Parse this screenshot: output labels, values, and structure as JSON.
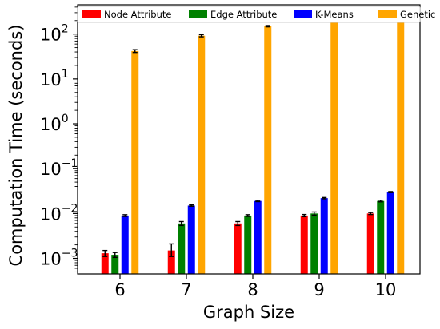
{
  "chart_data": {
    "type": "bar",
    "xlabel": "Graph Size",
    "ylabel": "Computation Time (seconds)",
    "yscale": "log",
    "ylim": [
      0.00045,
      450
    ],
    "grid": false,
    "legend_position": "top",
    "categories": [
      "6",
      "7",
      "8",
      "9",
      "10"
    ],
    "y_ticks": [
      {
        "value": 0.001,
        "base": "10",
        "exp": "−3"
      },
      {
        "value": 0.01,
        "base": "10",
        "exp": "−2"
      },
      {
        "value": 0.1,
        "base": "10",
        "exp": "−1"
      },
      {
        "value": 1,
        "base": "10",
        "exp": "0"
      },
      {
        "value": 10,
        "base": "10",
        "exp": "1"
      },
      {
        "value": 100,
        "base": "10",
        "exp": "2"
      }
    ],
    "series": [
      {
        "name": "Node Attribute",
        "color": "#ff0000",
        "values": [
          0.0013,
          0.0015,
          0.006,
          0.009,
          0.01
        ],
        "err_low": [
          0.0011,
          0.0011,
          0.0054,
          0.0085,
          0.0095
        ],
        "err_high": [
          0.0015,
          0.0021,
          0.0066,
          0.0095,
          0.0105
        ]
      },
      {
        "name": "Edge Attribute",
        "color": "#008000",
        "values": [
          0.0012,
          0.006,
          0.009,
          0.01,
          0.019
        ],
        "err_low": [
          0.00105,
          0.0054,
          0.0086,
          0.0092,
          0.0182
        ],
        "err_high": [
          0.00135,
          0.0066,
          0.0094,
          0.0108,
          0.0198
        ]
      },
      {
        "name": "K-Means",
        "color": "#0000ff",
        "values": [
          0.009,
          0.015,
          0.019,
          0.022,
          0.03
        ],
        "err_low": [
          0.0086,
          0.0145,
          0.0184,
          0.0213,
          0.0292
        ],
        "err_high": [
          0.0094,
          0.0155,
          0.0196,
          0.0227,
          0.0308
        ]
      },
      {
        "name": "Genetic",
        "color": "#ffa500",
        "values": [
          42,
          92,
          150,
          210,
          320
        ],
        "err_low": [
          39,
          87,
          145,
          203,
          312
        ],
        "err_high": [
          45,
          97,
          155,
          217,
          328
        ]
      }
    ]
  }
}
